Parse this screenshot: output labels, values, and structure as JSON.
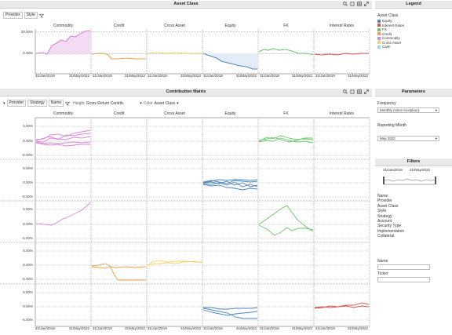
{
  "top_panel": {
    "title": "Asset Class",
    "toolbar": {
      "provider": "Provider",
      "style": "Style"
    },
    "columns": [
      "Commodity",
      "Credit",
      "Cross Asset",
      "Equity",
      "FX",
      "Interest Rates"
    ],
    "y_ticks": [
      "20.00%",
      "0.00%"
    ],
    "x_ticks": [
      "31/Jan/2019",
      "31/May/2022"
    ]
  },
  "legend": {
    "header": "Legend",
    "title": "Asset Class",
    "items": [
      {
        "label": "Equity",
        "color": "#4e86c2"
      },
      {
        "label": "Interest Rates",
        "color": "#d9534f"
      },
      {
        "label": "FX",
        "color": "#6cc46c"
      },
      {
        "label": "Credit",
        "color": "#f0a050"
      },
      {
        "label": "Commodity",
        "color": "#d885d8"
      },
      {
        "label": "Cross Asset",
        "color": "#f2d36b"
      },
      {
        "label": "Cash",
        "color": "#9fd8d8"
      }
    ]
  },
  "matrix": {
    "title": "Contribution Matrix",
    "toolbar": {
      "provider": "Provider",
      "strategy": "Strategy",
      "name": "Name",
      "height_label": "Height",
      "height_value": "Gross Return Contrib.",
      "color_label": "Color",
      "color_value": "Asset Class"
    },
    "columns": [
      "Commodity",
      "Credit",
      "Cross Asset",
      "Equity",
      "FX",
      "Interest Rates"
    ],
    "row_ticks": [
      [
        "5.00%",
        "0.00%",
        "-5.00%"
      ],
      [
        "5.00%",
        "0.00%",
        "-5.00%"
      ],
      [
        "5.00%",
        "0.00%",
        "-5.00%"
      ],
      [
        "5.00%",
        "0.00%",
        "-5.00%"
      ],
      [
        "5.00%",
        "0.00%",
        "-5.00%"
      ]
    ],
    "x_ticks": [
      "31/Jan/2019",
      "31/May/2022"
    ]
  },
  "parameters": {
    "header": "Parameters",
    "frequency_label": "Frequency",
    "frequency_value": "Monthly (since Inception)",
    "reporting_label": "Reporting Month",
    "reporting_value": "May 2022"
  },
  "filters": {
    "header": "Filters",
    "range_start": "31/Jan/2019",
    "range_end": "31/May/2022",
    "fields": [
      "Name",
      "Provider",
      "Asset Class",
      "Style",
      "Strategy",
      "Account",
      "Security Type",
      "Implementation",
      "Collateral"
    ],
    "name_label": "Name",
    "ticker_label": "Ticker"
  }
}
